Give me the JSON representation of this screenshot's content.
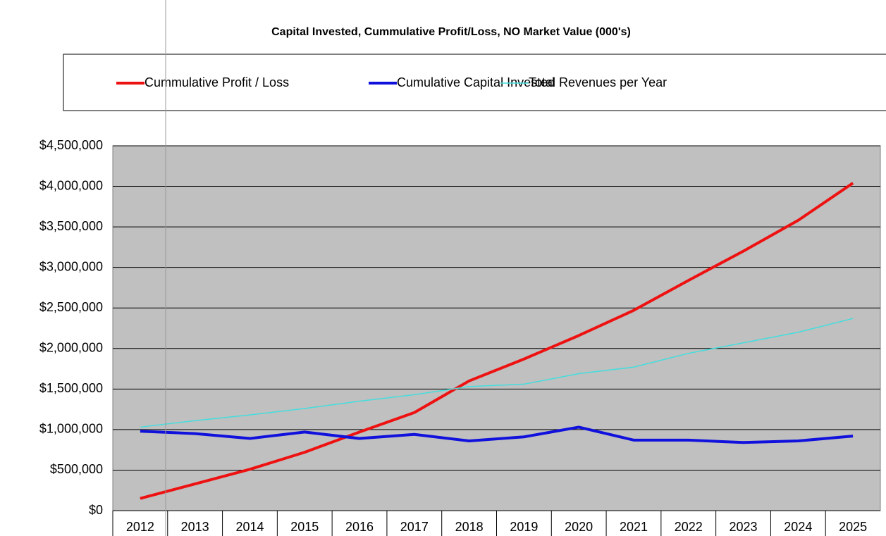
{
  "chart_data": {
    "type": "line",
    "title": "Capital Invested, Cummulative Profit/Loss, NO Market Value (000's)",
    "categories": [
      "2012",
      "2013",
      "2014",
      "2015",
      "2016",
      "2017",
      "2018",
      "2019",
      "2020",
      "2021",
      "2022",
      "2023",
      "2024",
      "2025"
    ],
    "series": [
      {
        "name": "Cummulative Profit / Loss",
        "color": "#ee1111",
        "width": 4,
        "values": [
          150000,
          330000,
          510000,
          720000,
          970000,
          1210000,
          1600000,
          1870000,
          2160000,
          2470000,
          2840000,
          3200000,
          3580000,
          4040000
        ]
      },
      {
        "name": "Cumulative Capital Invested",
        "color": "#1111dd",
        "width": 4,
        "values": [
          980000,
          950000,
          890000,
          970000,
          890000,
          940000,
          860000,
          910000,
          1030000,
          870000,
          870000,
          840000,
          860000,
          920000
        ]
      },
      {
        "name": "Total Revenues per Year",
        "color": "#44dddd",
        "width": 1.5,
        "values": [
          1030000,
          1110000,
          1180000,
          1260000,
          1350000,
          1430000,
          1530000,
          1560000,
          1690000,
          1770000,
          1940000,
          2070000,
          2200000,
          2370000
        ]
      }
    ],
    "ylim": [
      0,
      4500000
    ],
    "yticks": [
      {
        "value": 0,
        "label": "$0"
      },
      {
        "value": 500000,
        "label": "$500,000"
      },
      {
        "value": 1000000,
        "label": "$1,000,000"
      },
      {
        "value": 1500000,
        "label": "$1,500,000"
      },
      {
        "value": 2000000,
        "label": "$2,000,000"
      },
      {
        "value": 2500000,
        "label": "$2,500,000"
      },
      {
        "value": 3000000,
        "label": "$3,000,000"
      },
      {
        "value": 3500000,
        "label": "$3,500,000"
      },
      {
        "value": 4000000,
        "label": "$4,000,000"
      },
      {
        "value": 4500000,
        "label": "$4,500,000"
      }
    ],
    "grid": true,
    "plot_background": "#c0c0c0"
  }
}
